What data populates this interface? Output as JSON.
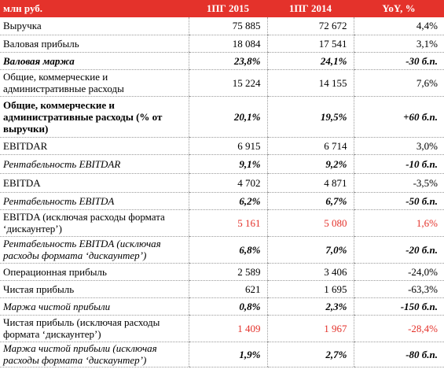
{
  "table": {
    "header": [
      "млн руб.",
      "1ПГ 2015",
      "1ПГ 2014",
      "YoY, %"
    ],
    "rows": [
      [
        "Выручка",
        "75 885",
        "72 672",
        "4,4%"
      ],
      [
        "Валовая прибыль",
        "18 084",
        "17 541",
        "3,1%"
      ],
      [
        "Валовая маржа",
        "23,8%",
        "24,1%",
        "-30 б.п."
      ],
      [
        "Общие, коммерческие и административные расходы",
        "15 224",
        "14 155",
        "7,6%"
      ],
      [
        "Общие, коммерческие и административные расходы (% от выручки)",
        "20,1%",
        "19,5%",
        "+60 б.п."
      ],
      [
        "EBITDAR",
        "6 915",
        "6 714",
        "3,0%"
      ],
      [
        "Рентабельность EBITDAR",
        "9,1%",
        "9,2%",
        "-10 б.п."
      ],
      [
        "EBITDA",
        "4 702",
        "4 871",
        "-3,5%"
      ],
      [
        "Рентабельность EBITDA",
        "6,2%",
        "6,7%",
        "-50 б.п."
      ],
      [
        "EBITDA (исключая расходы формата ‘дискаунтер’)",
        "5 161",
        "5 080",
        "1,6%"
      ],
      [
        "Рентабельность EBITDA (исключая расходы формата ‘дискаунтер’)",
        "6,8%",
        "7,0%",
        "-20 б.п."
      ],
      [
        "Операционная прибыль",
        "2 589",
        "3 406",
        "-24,0%"
      ],
      [
        "Чистая прибыль",
        "621",
        "1 695",
        "-63,3%"
      ],
      [
        "Маржа чистой прибыли",
        "0,8%",
        "2,3%",
        "-150 б.п."
      ],
      [
        "Чистая прибыль (исключая расходы формата ‘дискаунтер’)",
        "1 409",
        "1 967",
        "-28,4%"
      ],
      [
        "Маржа чистой прибыли (исключая расходы формата ‘дискаунтер’)",
        "1,9%",
        "2,7%",
        "-80 б.п."
      ]
    ]
  }
}
